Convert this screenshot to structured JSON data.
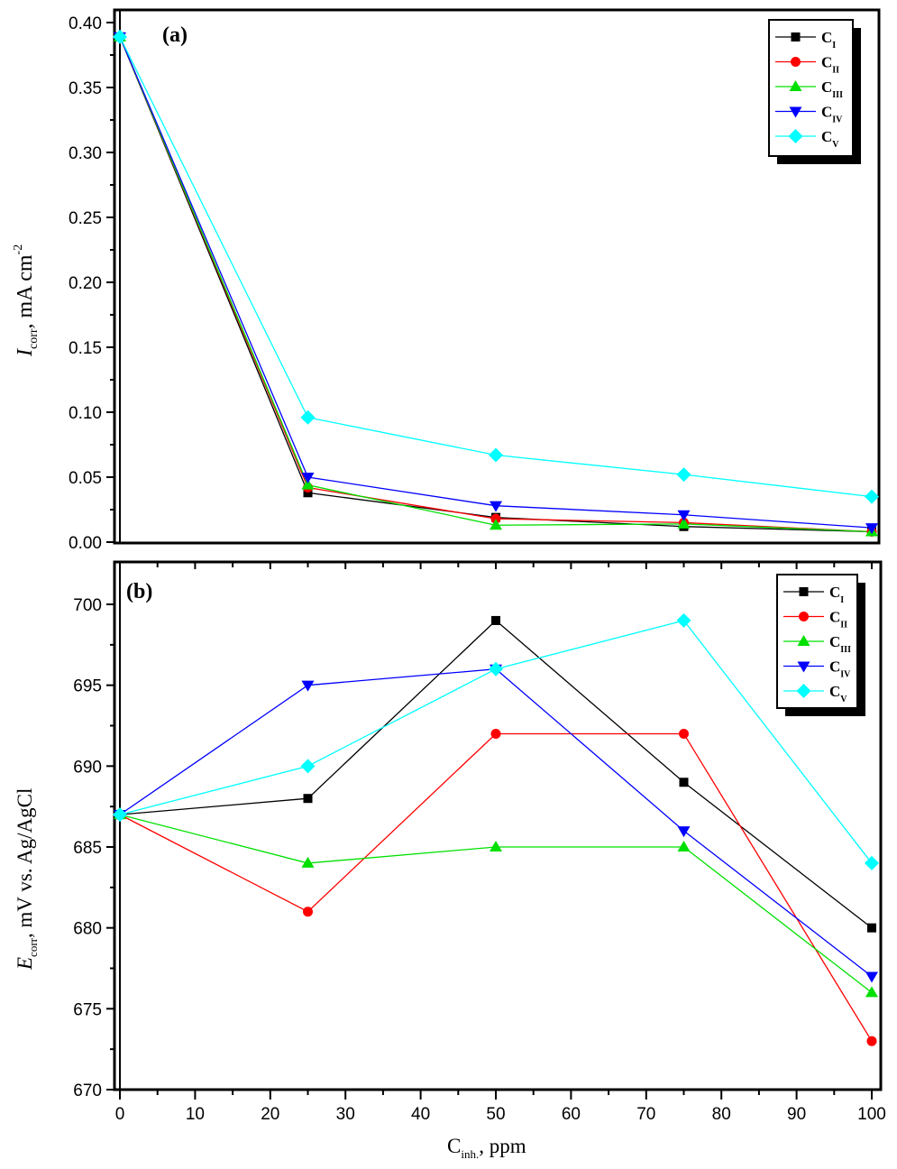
{
  "chart_data": [
    {
      "type": "line",
      "panel_label": "(a)",
      "ylabel": {
        "main": "I",
        "sub": "corr",
        "rest": ", mA cm",
        "sup": "-2"
      },
      "xlabel": "",
      "x": [
        0,
        25,
        50,
        75,
        100
      ],
      "xlim": [
        0,
        100
      ],
      "ylim": [
        0.0,
        0.4
      ],
      "yticks": [
        "0.00",
        "0.05",
        "0.10",
        "0.15",
        "0.20",
        "0.25",
        "0.30",
        "0.35",
        "0.40"
      ],
      "grid": false,
      "legend_position": "top-right",
      "series": [
        {
          "name": "C",
          "sub": "I",
          "color": "#000000",
          "marker": "square",
          "values": [
            0.389,
            0.038,
            0.019,
            0.012,
            0.008
          ]
        },
        {
          "name": "C",
          "sub": "II",
          "color": "#ff0000",
          "marker": "circle",
          "values": [
            0.389,
            0.042,
            0.018,
            0.015,
            0.008
          ]
        },
        {
          "name": "C",
          "sub": "III",
          "color": "#00e000",
          "marker": "triangle-up",
          "values": [
            0.389,
            0.044,
            0.013,
            0.014,
            0.008
          ]
        },
        {
          "name": "C",
          "sub": "IV",
          "color": "#0000ff",
          "marker": "triangle-down",
          "values": [
            0.389,
            0.05,
            0.028,
            0.021,
            0.011
          ]
        },
        {
          "name": "C",
          "sub": "V",
          "color": "#00ffff",
          "marker": "diamond",
          "values": [
            0.389,
            0.096,
            0.067,
            0.052,
            0.035
          ]
        }
      ]
    },
    {
      "type": "line",
      "panel_label": "(b)",
      "ylabel": {
        "main": "E",
        "sub": "corr",
        "rest": ", mV vs. Ag/AgCl"
      },
      "xlabel": {
        "main": "C",
        "sub": "inh.",
        "rest": ", ppm"
      },
      "x": [
        0,
        25,
        50,
        75,
        100
      ],
      "xlim": [
        0,
        100
      ],
      "xticks": [
        "0",
        "10",
        "20",
        "30",
        "40",
        "50",
        "60",
        "70",
        "80",
        "90",
        "100"
      ],
      "ylim": [
        670,
        702
      ],
      "yticks": [
        "670",
        "675",
        "680",
        "685",
        "690",
        "695",
        "700"
      ],
      "grid": false,
      "legend_position": "top-right",
      "series": [
        {
          "name": "C",
          "sub": "I",
          "color": "#000000",
          "marker": "square",
          "values": [
            687,
            688,
            699,
            689,
            680
          ]
        },
        {
          "name": "C",
          "sub": "II",
          "color": "#ff0000",
          "marker": "circle",
          "values": [
            687,
            681,
            692,
            692,
            673
          ]
        },
        {
          "name": "C",
          "sub": "III",
          "color": "#00e000",
          "marker": "triangle-up",
          "values": [
            687,
            684,
            685,
            685,
            676
          ]
        },
        {
          "name": "C",
          "sub": "IV",
          "color": "#0000ff",
          "marker": "triangle-down",
          "values": [
            687,
            695,
            696,
            686,
            677
          ]
        },
        {
          "name": "C",
          "sub": "V",
          "color": "#00ffff",
          "marker": "diamond",
          "values": [
            687,
            690,
            696,
            699,
            684
          ]
        }
      ]
    }
  ]
}
